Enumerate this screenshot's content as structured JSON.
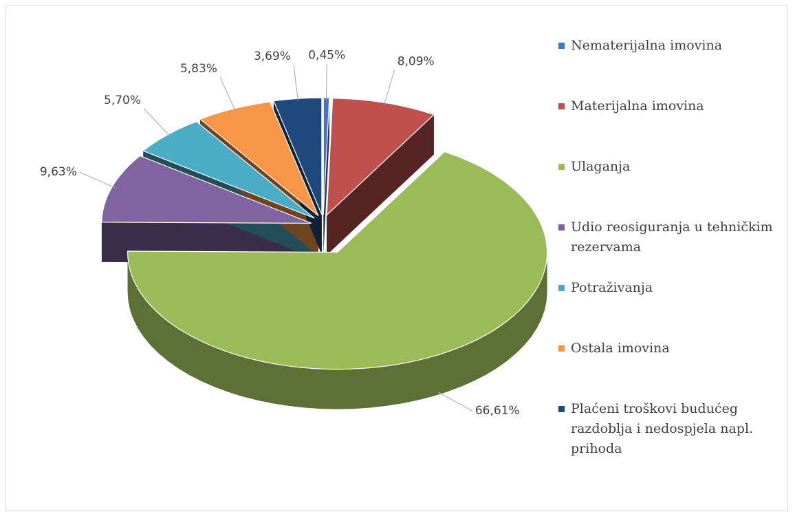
{
  "chart_data": {
    "type": "pie",
    "categories": [
      "Nematerijalna imovina",
      "Materijalna imovina",
      "Ulaganja",
      "Udio reosiguranja u tehničkim rezervama",
      "Potraživanja",
      "Ostala imovina",
      "Plaćeni troškovi budućeg razdoblja i nedospjela napl. prihoda"
    ],
    "values": [
      0.45,
      8.09,
      66.61,
      9.63,
      5.7,
      5.83,
      3.69
    ],
    "value_labels": [
      "0,45%",
      "8,09%",
      "66,61%",
      "9,63%",
      "5,70%",
      "5,83%",
      "3,69%"
    ],
    "colors": [
      "#4472c4",
      "#c0504d",
      "#9bbb59",
      "#8064a2",
      "#4bacc6",
      "#f79646",
      "#1f497d"
    ],
    "legend": "right"
  }
}
